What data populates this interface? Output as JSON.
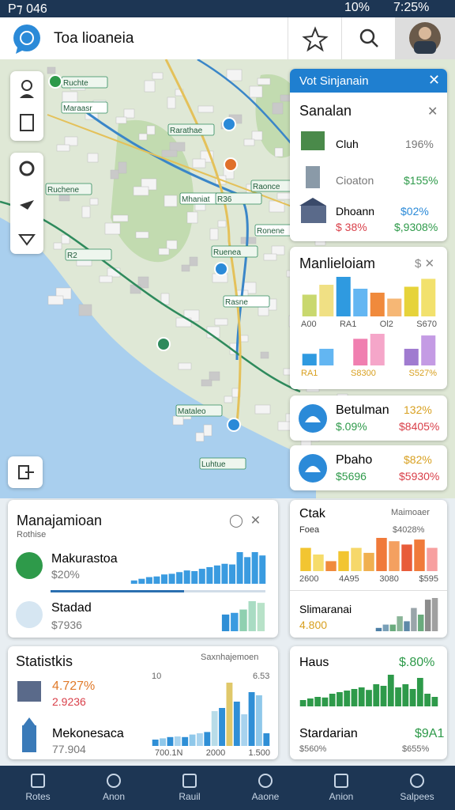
{
  "status_bar": {
    "left": "P⁊ 046",
    "battery": "10%",
    "clock": "7:25%"
  },
  "header": {
    "title": "Toa lioaneia"
  },
  "map": {
    "labels": [
      "Ruchte",
      "Maraasr",
      "Rarathae",
      "Ruchene",
      "Mhaniat",
      "Raonce",
      "R36",
      "Ronene",
      "R2",
      "Ruenea",
      "Rasne",
      "Mataleo",
      "Luhtue"
    ]
  },
  "panel": {
    "title": "Vot Sinjanain",
    "card": {
      "title": "Sanalan",
      "rows": [
        {
          "name": "Cluh",
          "value": "196%"
        },
        {
          "name": "Cioaton",
          "value": "$155%"
        },
        {
          "name": "Dhoann",
          "value": "$02%",
          "sub": "$ 38%",
          "sub2": "$,9308%"
        }
      ]
    }
  },
  "chart_card": {
    "title": "Manlieloiam",
    "labels_top": [
      "A00",
      "RA1",
      "Ol2",
      "S670"
    ],
    "labels_bottom": [
      "RA1",
      "S8300",
      "S527%"
    ],
    "bars_top": {
      "values": [
        55,
        80,
        100,
        70,
        60,
        45,
        75,
        95
      ],
      "colors": [
        "#c9d86e",
        "#f0e084",
        "#2f9ae0",
        "#63b6f2",
        "#f08a3c",
        "#f6b775",
        "#e6d33a",
        "#f2e16d"
      ]
    },
    "bars_bottom": {
      "values": [
        35,
        50,
        0,
        80,
        95,
        0,
        50,
        90
      ],
      "colors": [
        "#2f9ae0",
        "#63b6f2",
        "#ffffff",
        "#f07fb0",
        "#f5a6c9",
        "#ffffff",
        "#a07bd0",
        "#c49be4"
      ]
    }
  },
  "mini_cards": [
    {
      "title": "Betulman",
      "sub": "$.09%",
      "value": "132%",
      "value2": "$8405%"
    },
    {
      "title": "Pbaho",
      "sub": "$5696",
      "value": "$82%",
      "value2": "$5930%"
    }
  ],
  "manage_card": {
    "title": "Manajamioan",
    "subtitle": "Rothise",
    "rows": [
      {
        "name": "Makurastoa",
        "value": "$20%"
      },
      {
        "name": "Stadad",
        "value": "$7936"
      }
    ],
    "bars_1": {
      "values": [
        10,
        15,
        20,
        22,
        28,
        30,
        35,
        40,
        38,
        45,
        50,
        55,
        60,
        58,
        95,
        80,
        95,
        85
      ],
      "colors": [
        "#3a9be0"
      ]
    },
    "bars_2": {
      "values": [
        50,
        55,
        65,
        90,
        85
      ],
      "colors": [
        "#2f8fd6",
        "#3a9be0",
        "#8fd0b0",
        "#a9dcc3",
        "#b8e2c8"
      ]
    }
  },
  "ctak_card": {
    "title": "Ctak",
    "subtitle": "Maimoaer",
    "label": "Foea",
    "value": "$4028%",
    "axis": [
      "2600",
      "4A95",
      "3080",
      "$595"
    ],
    "bars": {
      "values": [
        70,
        50,
        30,
        60,
        70,
        55,
        100,
        90,
        80,
        95,
        70
      ],
      "colors": [
        "#f2c531",
        "#f6dc6b",
        "#f08a3c",
        "#f2c531",
        "#f6d86a",
        "#f0b050",
        "#f07a3a",
        "#f4a060",
        "#e85c3a",
        "#f07a3a",
        "#f7a0a0"
      ]
    },
    "title2": "Slimaranai",
    "value2": "4.800",
    "bars2": {
      "values": [
        10,
        20,
        20,
        45,
        30,
        70,
        50,
        95,
        100
      ],
      "colors": [
        "#4d7fa6",
        "#7aa0b8",
        "#6aab7d",
        "#8ab598",
        "#5e89a8",
        "#9aa5aa",
        "#6aab7d",
        "#8c8c8c",
        "#a0a0a0"
      ]
    }
  },
  "stats_card": {
    "title": "Statistkis",
    "subtitle": "Saxnhajemoen",
    "value1": "4.727%",
    "value2": "2.9236",
    "name": "Mekonesaca",
    "value3": "77.904",
    "top_left": "10",
    "top_right": "6.53",
    "axis": [
      "700.1N",
      "2000",
      "1.500"
    ],
    "bars": {
      "values": [
        10,
        12,
        14,
        15,
        14,
        18,
        20,
        22,
        55,
        60,
        100,
        70,
        50,
        85,
        80,
        20
      ],
      "colors": [
        "#2f8fd6",
        "#8fc8ea",
        "#2f8fd6",
        "#a8d3ee",
        "#2f8fd6",
        "#8fc8ea",
        "#a8d3ee",
        "#2f8fd6",
        "#b8dce8",
        "#2f8fd6",
        "#e0c86a",
        "#2f8fd6",
        "#a8d3ee",
        "#2f8fd6",
        "#8fc8ea",
        "#2f8fd6"
      ]
    }
  },
  "haus_card": {
    "title": "Haus",
    "value": "$.80%",
    "title2": "Stardarian",
    "value2": "$9A1",
    "sub": "$560%",
    "sub2": "$655%",
    "bars": {
      "values": [
        20,
        25,
        30,
        28,
        40,
        45,
        50,
        55,
        60,
        52,
        70,
        65,
        100,
        60,
        70,
        55,
        90,
        40,
        30
      ],
      "colors": [
        "#2e9a4a"
      ]
    }
  },
  "nav": [
    "Rotes",
    "Anon",
    "Rauil",
    "Aaone",
    "Anion",
    "Salpees"
  ]
}
